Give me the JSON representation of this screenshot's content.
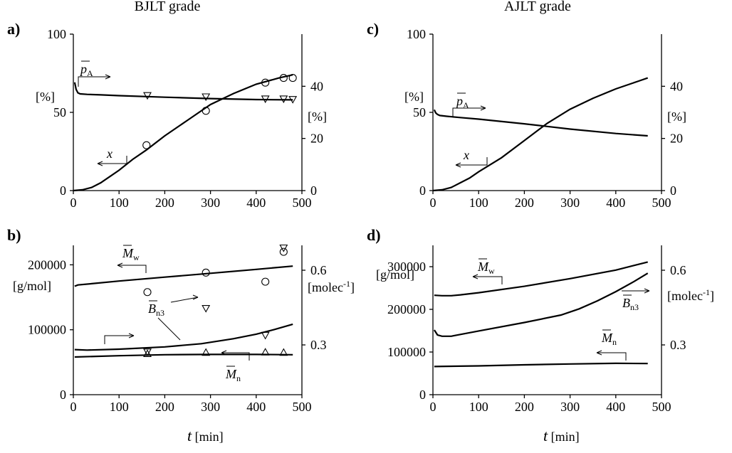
{
  "titles": {
    "left": "BJLT grade",
    "right": "AJLT grade"
  },
  "colors": {
    "ink": "#000000",
    "background": "#ffffff"
  },
  "chart_data": [
    {
      "panel": "a)",
      "type": "line",
      "grade": "BJLT grade",
      "xlim": [
        0,
        500
      ],
      "ylim": [
        0,
        100
      ],
      "y2lim": [
        0,
        60
      ],
      "xticks": [
        "0",
        "100",
        "200",
        "300",
        "400",
        "500"
      ],
      "yticks": [
        "0",
        "50",
        "100"
      ],
      "y2ticks": [
        "0",
        "20",
        "40"
      ],
      "ylabel": "[%]",
      "y2label": "[%]",
      "series": [
        {
          "name": "x",
          "axis": "left",
          "kind": "line",
          "x": [
            0,
            20,
            40,
            60,
            80,
            100,
            130,
            160,
            200,
            250,
            300,
            350,
            400,
            450,
            480
          ],
          "y": [
            0,
            0.5,
            2,
            5,
            9,
            13,
            20,
            26,
            35,
            45,
            55,
            62,
            68,
            72,
            74
          ]
        },
        {
          "name": "x measured",
          "axis": "left",
          "kind": "circle",
          "x": [
            160,
            290,
            420,
            460,
            480
          ],
          "y": [
            29,
            51,
            69,
            72,
            72
          ]
        },
        {
          "name": "pA",
          "axis": "right",
          "kind": "line",
          "x": [
            3,
            6,
            10,
            15,
            30,
            60,
            100,
            200,
            300,
            400,
            480
          ],
          "y": [
            41.5,
            38.8,
            37.5,
            37.1,
            36.9,
            36.7,
            36.4,
            35.8,
            35.3,
            34.9,
            34.8
          ]
        },
        {
          "name": "pA measured",
          "axis": "right",
          "kind": "tridown",
          "x": [
            162,
            290,
            420,
            460,
            480
          ],
          "y": [
            36.5,
            36.0,
            35.2,
            35.2,
            35.0
          ]
        }
      ],
      "labels": {
        "pA_main": "p",
        "pA_sub": "A",
        "x": "x"
      }
    },
    {
      "panel": "b)",
      "type": "line",
      "grade": "BJLT grade",
      "xlim": [
        0,
        500
      ],
      "ylim": [
        0,
        230000
      ],
      "y2lim": [
        0.1,
        0.7
      ],
      "xticks": [
        "0",
        "100",
        "200",
        "300",
        "400",
        "500"
      ],
      "yticks": [
        "0",
        "100000",
        "200000"
      ],
      "y2ticks": [
        "0.3",
        "0.6"
      ],
      "ylabel": "[g/mol]",
      "y2label": "[molec-1]",
      "xlabel_t": "t",
      "xlabel_unit": "[min]",
      "series": [
        {
          "name": "Mw",
          "axis": "left",
          "kind": "line",
          "x": [
            3,
            10,
            40,
            100,
            200,
            300,
            400,
            480
          ],
          "y": [
            167000,
            169000,
            171000,
            175000,
            181000,
            187000,
            193000,
            198000
          ]
        },
        {
          "name": "Mw measured",
          "axis": "left",
          "kind": "circle",
          "x": [
            162,
            290,
            420,
            460
          ],
          "y": [
            158000,
            188000,
            174000,
            220000
          ]
        },
        {
          "name": "Bn3",
          "axis": "right",
          "kind": "line",
          "x": [
            3,
            30,
            100,
            200,
            280,
            350,
            400,
            440,
            480
          ],
          "y": [
            0.281,
            0.279,
            0.283,
            0.292,
            0.305,
            0.325,
            0.343,
            0.362,
            0.383
          ]
        },
        {
          "name": "Bn3 measured",
          "axis": "right",
          "kind": "tridown",
          "x": [
            162,
            290,
            420,
            460
          ],
          "y": [
            0.272,
            0.447,
            0.339,
            0.69
          ]
        },
        {
          "name": "Mn",
          "axis": "left",
          "kind": "line",
          "x": [
            3,
            50,
            100,
            200,
            300,
            400,
            480
          ],
          "y": [
            58000,
            59000,
            60000,
            61500,
            62000,
            62000,
            61500
          ]
        },
        {
          "name": "Mn measured",
          "axis": "left",
          "kind": "triup",
          "x": [
            162,
            290,
            420,
            460
          ],
          "y": [
            63000,
            65000,
            65500,
            65000
          ]
        }
      ],
      "labels": {
        "Mw_main": "M",
        "Mw_sub": "w",
        "Mn_main": "M",
        "Mn_sub": "n",
        "Bn3_main": "B",
        "Bn3_sub": "n3"
      }
    },
    {
      "panel": "c)",
      "type": "line",
      "grade": "AJLT grade",
      "xlim": [
        0,
        500
      ],
      "ylim": [
        0,
        100
      ],
      "y2lim": [
        0,
        60
      ],
      "xticks": [
        "0",
        "100",
        "200",
        "300",
        "400",
        "500"
      ],
      "yticks": [
        "0",
        "50",
        "100"
      ],
      "y2ticks": [
        "0",
        "20",
        "40"
      ],
      "ylabel": "[%]",
      "y2label": "[%]",
      "series": [
        {
          "name": "x",
          "axis": "left",
          "kind": "line",
          "x": [
            0,
            20,
            40,
            60,
            80,
            100,
            150,
            200,
            250,
            300,
            350,
            400,
            450,
            470
          ],
          "y": [
            0,
            0.5,
            2,
            5,
            8,
            12,
            21,
            32,
            43,
            52,
            59,
            65,
            70,
            72
          ]
        },
        {
          "name": "pA",
          "axis": "right",
          "kind": "line",
          "x": [
            3,
            6,
            10,
            15,
            30,
            60,
            100,
            200,
            300,
            400,
            470
          ],
          "y": [
            31.0,
            29.8,
            29.2,
            28.8,
            28.5,
            28.0,
            27.4,
            25.6,
            23.6,
            21.9,
            21.0
          ]
        }
      ],
      "labels": {
        "pA_main": "p",
        "pA_sub": "A",
        "x": "x"
      }
    },
    {
      "panel": "d)",
      "type": "line",
      "grade": "AJLT grade",
      "xlim": [
        0,
        500
      ],
      "ylim": [
        0,
        350000
      ],
      "y2lim": [
        0.1,
        0.7
      ],
      "xticks": [
        "0",
        "100",
        "200",
        "300",
        "400",
        "500"
      ],
      "yticks": [
        "0",
        "100000",
        "200000",
        "300000"
      ],
      "y2ticks": [
        "0.3",
        "0.6"
      ],
      "ylabel": "[g/mol]",
      "y2label": "[molec-1]",
      "xlabel_t": "t",
      "xlabel_unit": "[min]",
      "series": [
        {
          "name": "Mw",
          "axis": "left",
          "kind": "line",
          "x": [
            3,
            20,
            40,
            60,
            100,
            200,
            300,
            400,
            470
          ],
          "y": [
            233000,
            232000,
            232000,
            234000,
            239000,
            254000,
            272000,
            292000,
            311000
          ]
        },
        {
          "name": "Bn3",
          "axis": "right",
          "kind": "line",
          "x": [
            3,
            10,
            20,
            40,
            60,
            100,
            200,
            280,
            320,
            360,
            400,
            440,
            470
          ],
          "y": [
            0.36,
            0.34,
            0.335,
            0.335,
            0.342,
            0.356,
            0.39,
            0.42,
            0.445,
            0.477,
            0.514,
            0.555,
            0.588
          ]
        },
        {
          "name": "Mn",
          "axis": "left",
          "kind": "line",
          "x": [
            3,
            100,
            200,
            300,
            400,
            470
          ],
          "y": [
            66000,
            67500,
            70000,
            72000,
            73500,
            73000
          ]
        }
      ],
      "labels": {
        "Mw_main": "M",
        "Mw_sub": "w",
        "Mn_main": "M",
        "Mn_sub": "n",
        "Bn3_main": "B",
        "Bn3_sub": "n3"
      }
    }
  ]
}
